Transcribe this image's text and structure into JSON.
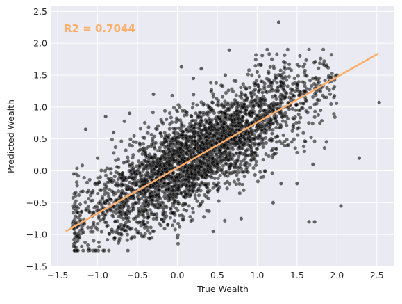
{
  "chart_data": {
    "type": "scatter",
    "title": "",
    "xlabel": "True Wealth",
    "ylabel": "Predicted Wealth",
    "xlim": [
      -1.58,
      2.72
    ],
    "ylim": [
      -1.5,
      2.58
    ],
    "x_ticks": [
      -1.5,
      -1.0,
      -0.5,
      0.0,
      0.5,
      1.0,
      1.5,
      2.0,
      2.5
    ],
    "x_tick_labels": [
      "−1.5",
      "−1.0",
      "−0.5",
      "0.0",
      "0.5",
      "1.0",
      "1.5",
      "2.0",
      "2.5"
    ],
    "y_ticks": [
      -1.5,
      -1.0,
      -0.5,
      0.0,
      0.5,
      1.0,
      1.5,
      2.0,
      2.5
    ],
    "y_tick_labels": [
      "−1.5",
      "−1.0",
      "−0.5",
      "0.0",
      "0.5",
      "1.0",
      "1.5",
      "2.0",
      "2.5"
    ],
    "grid": true,
    "annotation": "R2 = 0.7044",
    "fit_line": {
      "x": [
        -1.4,
        2.52
      ],
      "y": [
        -0.95,
        1.84
      ]
    },
    "points": {
      "x": [
        -1.3,
        -1.22,
        -1.05,
        -0.92,
        -0.85,
        -0.7,
        -0.62,
        -0.5,
        -0.4,
        -0.31,
        -0.2,
        -0.1,
        0.0,
        0.1,
        0.18,
        0.3,
        0.4,
        0.5,
        0.6,
        0.7,
        0.8,
        0.9,
        1.0,
        1.1,
        1.2,
        1.3,
        1.4,
        1.5,
        1.6,
        1.7,
        1.8,
        1.9,
        2.0,
        -1.0,
        -0.8,
        -0.6,
        -0.3,
        0.2,
        0.6,
        1.0,
        1.3,
        1.7,
        -0.7,
        0.0,
        0.8,
        1.5,
        1.27,
        0.65,
        2.28,
        2.53,
        -1.15,
        0.05,
        0.45,
        1.65,
        1.72,
        2.05,
        -0.9,
        0.3,
        1.2
      ],
      "y": [
        -0.9,
        -0.7,
        -0.85,
        -0.5,
        -0.6,
        -0.35,
        -0.55,
        -0.3,
        -0.15,
        -0.4,
        -0.05,
        0.1,
        -0.1,
        0.2,
        0.05,
        0.35,
        0.2,
        0.5,
        0.4,
        0.7,
        0.55,
        0.9,
        0.75,
        1.1,
        0.95,
        1.2,
        1.05,
        1.35,
        1.25,
        1.45,
        1.3,
        1.4,
        1.5,
        0.2,
        0.6,
        0.9,
        1.2,
        1.45,
        1.5,
        1.55,
        -0.2,
        0.1,
        -1.0,
        -1.05,
        -0.75,
        -0.2,
        2.33,
        1.89,
        0.2,
        1.07,
        0.65,
        1.63,
        -0.95,
        -0.8,
        -0.8,
        -0.55,
        0.85,
        1.6,
        -0.5
      ]
    }
  }
}
